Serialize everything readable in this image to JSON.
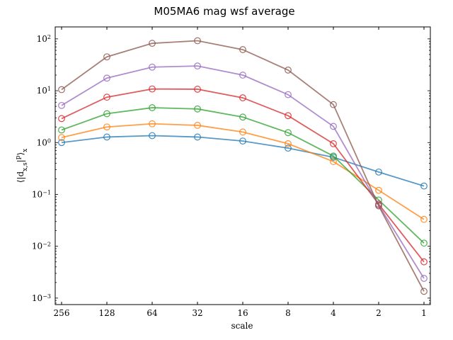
{
  "chart_data": {
    "type": "line",
    "title": "M05MA6 mag wsf average",
    "xlabel": "scale",
    "ylabel": "⟨|d_{x,s}|^p⟩_x",
    "x": [
      256,
      128,
      64,
      32,
      16,
      8,
      4,
      2,
      1
    ],
    "x_tick_labels": [
      "256",
      "128",
      "64",
      "32",
      "16",
      "8",
      "4",
      "2",
      "1"
    ],
    "x_scale": "log2",
    "x_reversed": true,
    "y_scale": "log",
    "ylim": [
      0.00075,
      170
    ],
    "y_ticks": [
      {
        "value": 0.001,
        "base": "10",
        "exp": "−3"
      },
      {
        "value": 0.01,
        "base": "10",
        "exp": "−2"
      },
      {
        "value": 0.1,
        "base": "10",
        "exp": "−1"
      },
      {
        "value": 1,
        "base": "10",
        "exp": "0"
      },
      {
        "value": 10,
        "base": "10",
        "exp": "1"
      },
      {
        "value": 100,
        "base": "10",
        "exp": "2"
      }
    ],
    "grid": false,
    "marker": "open-circle",
    "series": [
      {
        "color": "#1f77b4",
        "values": [
          1.0,
          1.28,
          1.36,
          1.28,
          1.07,
          0.78,
          0.52,
          0.27,
          0.145
        ]
      },
      {
        "color": "#ff7f0e",
        "values": [
          1.25,
          2.0,
          2.3,
          2.15,
          1.6,
          0.95,
          0.43,
          0.12,
          0.033
        ]
      },
      {
        "color": "#2ca02c",
        "values": [
          1.75,
          3.6,
          4.7,
          4.45,
          3.1,
          1.55,
          0.55,
          0.078,
          0.0115
        ]
      },
      {
        "color": "#d62728",
        "values": [
          2.9,
          7.5,
          10.8,
          10.7,
          7.3,
          3.3,
          0.95,
          0.065,
          0.005
        ]
      },
      {
        "color": "#9467bd",
        "values": [
          5.2,
          17.5,
          28.5,
          30.0,
          20.0,
          8.4,
          2.05,
          0.062,
          0.0024
        ]
      },
      {
        "color": "#8c564b",
        "values": [
          10.5,
          45.0,
          82.0,
          92.0,
          62.0,
          25.0,
          5.4,
          0.06,
          0.00135
        ]
      }
    ]
  }
}
